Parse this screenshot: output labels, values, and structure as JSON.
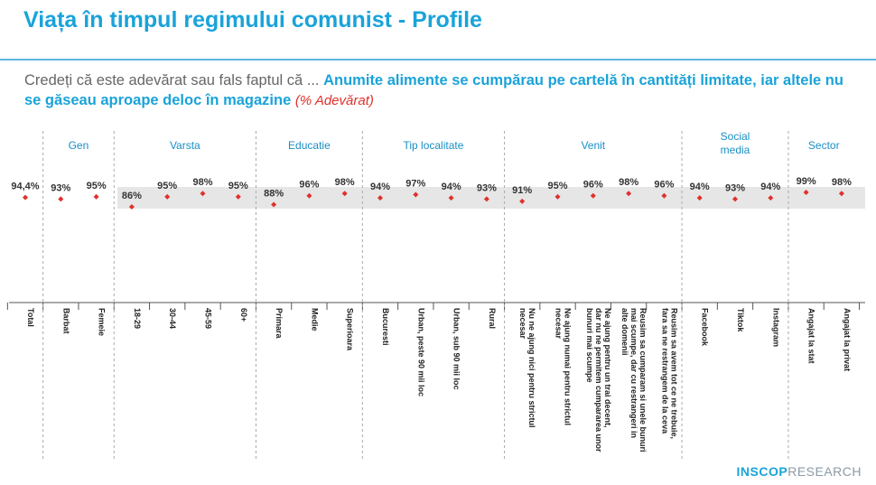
{
  "chart_data": {
    "type": "dot",
    "title": "Viața în timpul regimului comunist - Profile",
    "question": {
      "intro": "Credeți că este adevărat sau fals faptul că ...",
      "statement": "Anumite alimente se cumpărau pe cartelă în cantități limitate, iar altele nu se găseau aproape deloc în magazine",
      "unit": "(% Adevărat)"
    },
    "categories": [
      "Total",
      "Barbat",
      "Femeie",
      "18-29",
      "30-44",
      "45-59",
      "60+",
      "Primara",
      "Medie",
      "Superioara",
      "Bucuresti",
      "Urban, peste 90 mii loc",
      "Urban, sub 90 mii loc",
      "Rural",
      "Nu ne ajung nici pentru strictul necesar",
      "Ne ajung numai pentru strictul necesar",
      "Ne ajung pentru un trai decent, dar nu ne permitem cumpararea unor bunuri mai scumpe",
      "Reusim sa cumparam si unele bunuri mai scumpe, dar cu restrangeri in alte domenii",
      "Reusim sa avem tot ce ne trebuie, fara sa ne restrangem de la ceva",
      "Facebook",
      "Tiktok",
      "Instagram",
      "Angajat la stat",
      "Angajat la privat"
    ],
    "groups": [
      {
        "name": "Gen",
        "start": 1,
        "end": 2
      },
      {
        "name": "Varsta",
        "start": 3,
        "end": 6
      },
      {
        "name": "Educatie",
        "start": 7,
        "end": 9
      },
      {
        "name": "Tip localitate",
        "start": 10,
        "end": 13
      },
      {
        "name": "Venit",
        "start": 14,
        "end": 18
      },
      {
        "name": "Social media",
        "start": 19,
        "end": 21
      },
      {
        "name": "Sector",
        "start": 22,
        "end": 23
      }
    ],
    "values": [
      94.4,
      93,
      95,
      86,
      95,
      98,
      95,
      88,
      96,
      98,
      94,
      97,
      94,
      93,
      91,
      95,
      96,
      98,
      96,
      94,
      93,
      94,
      99,
      98
    ],
    "value_labels": [
      "94,4%",
      "93%",
      "95%",
      "86%",
      "95%",
      "98%",
      "95%",
      "88%",
      "96%",
      "98%",
      "94%",
      "97%",
      "94%",
      "93%",
      "91%",
      "95%",
      "96%",
      "98%",
      "96%",
      "94%",
      "93%",
      "94%",
      "99%",
      "98%"
    ],
    "color": "#e0302b",
    "logo": {
      "brand": "INSCOP",
      "suffix": "RESEARCH"
    }
  }
}
